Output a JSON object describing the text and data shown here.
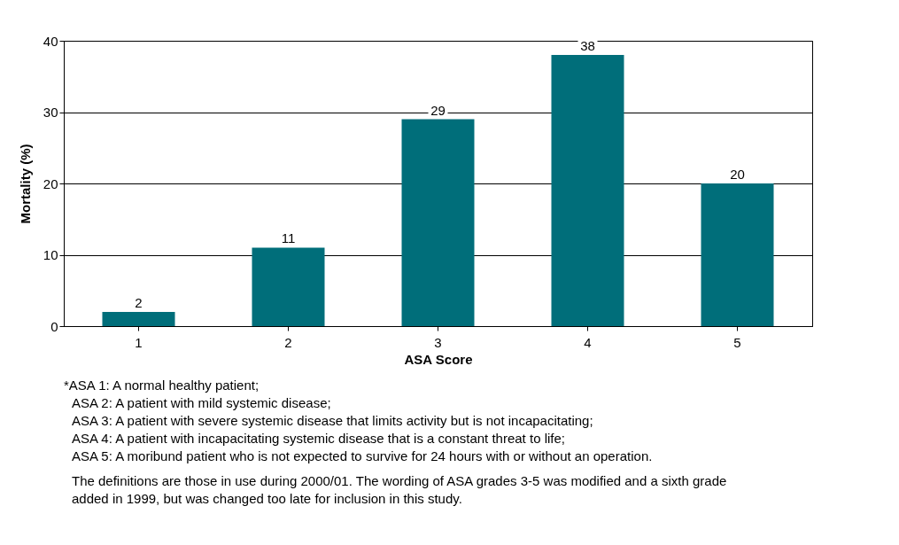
{
  "chart_data": {
    "type": "bar",
    "xlabel": "ASA Score",
    "ylabel": "Mortality (%)",
    "categories": [
      "1",
      "2",
      "3",
      "4",
      "5"
    ],
    "values": [
      2,
      11,
      29,
      38,
      20
    ],
    "color": "#006e7a",
    "ylim": [
      0,
      40
    ],
    "yticks": [
      0,
      10,
      20,
      30,
      40
    ],
    "grid": "y",
    "data_labels": true,
    "annotations": [
      "*ASA 1:  A normal healthy patient;",
      "ASA 2:  A patient with mild systemic disease;",
      "ASA 3:  A patient with severe systemic disease that limits activity but is not incapacitating;",
      "ASA 4:  A patient with incapacitating systemic disease that is a constant threat to life;",
      "ASA 5:  A moribund patient who is not expected to survive for 24 hours with or without an operation.",
      "The definitions are those in use during 2000/01. The wording of ASA grades 3-5 was modified and a sixth grade added in 1999, but was changed too late for inclusion in this study."
    ]
  }
}
